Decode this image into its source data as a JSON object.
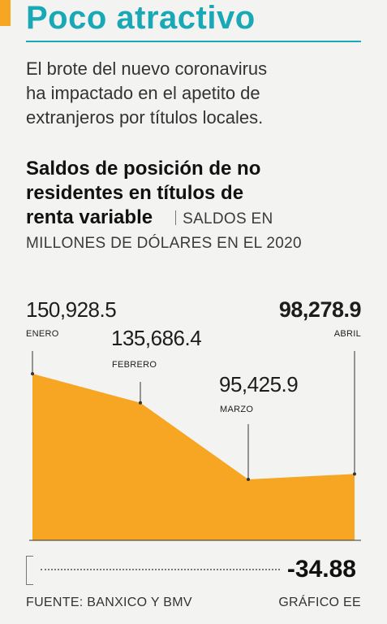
{
  "header": {
    "title": "Poco atractivo",
    "lede_lines": [
      "El brote del nuevo coronavirus",
      "ha impactado en el apetito de",
      "extranjeros por títulos locales."
    ]
  },
  "chart_heading": {
    "title_lines": [
      "Saldos de posición de no",
      "residentes en títulos de"
    ],
    "title_last": "renta variable",
    "unit_line1": "SALDOS EN",
    "unit_line2": "MILLONES DE DÓLARES EN EL 2020"
  },
  "chart_data": {
    "type": "area",
    "title": "Saldos de posición de no residentes en títulos de renta variable",
    "ylabel": "SALDOS EN MILLONES DE DÓLARES EN EL 2020",
    "categories": [
      "ENERO",
      "FEBRERO",
      "MARZO",
      "ABRIL"
    ],
    "values": [
      150928.5,
      135686.4,
      95425.9,
      98278.9
    ],
    "value_labels": [
      "150,928.5",
      "135,686.4",
      "95,425.9",
      "98,278.9"
    ],
    "ylim": [
      0,
      160000
    ],
    "fill_color": "#f6a623",
    "axis_color": "#333333"
  },
  "summary": {
    "change_value": "-34.88"
  },
  "footer": {
    "source": "FUENTE:  BANXICO Y BMV",
    "credit": "GRÁFICO EE"
  },
  "colors": {
    "teal": "#19a9b6",
    "orange": "#f6a623"
  }
}
